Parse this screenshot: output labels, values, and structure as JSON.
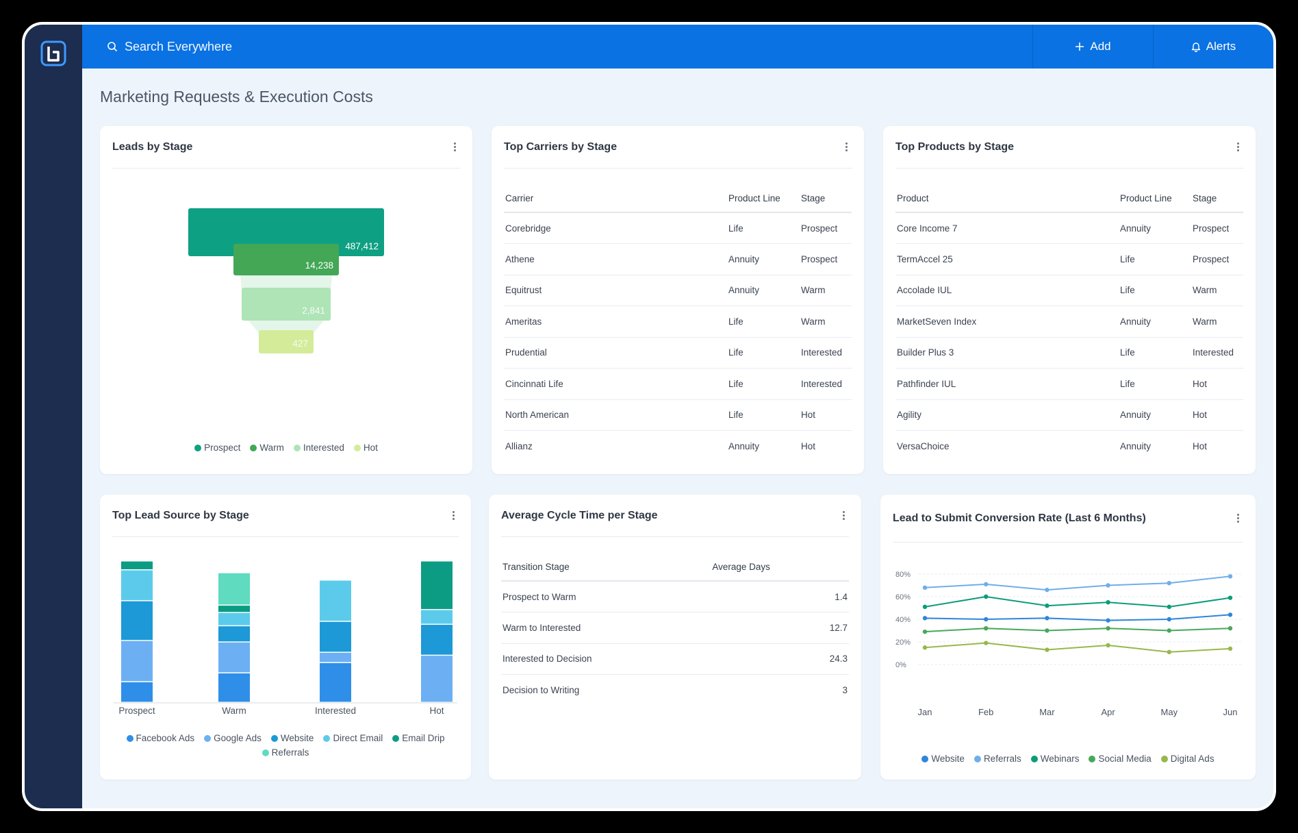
{
  "header": {
    "search_placeholder": "Search Everywhere",
    "add_label": "Add",
    "alerts_label": "Alerts"
  },
  "page": {
    "title": "Marketing Requests & Execution Costs"
  },
  "leads_by_stage": {
    "title": "Leads by Stage",
    "chart_data": {
      "type": "funnel",
      "categories": [
        "Prospect",
        "Warm",
        "Interested",
        "Hot"
      ],
      "values": [
        487412,
        14238,
        2841,
        427
      ],
      "labels": [
        "487,412",
        "14,238",
        "2,841",
        "427"
      ],
      "colors": [
        "#0ea082",
        "#43a756",
        "#aee4b6",
        "#d4ec9a"
      ]
    },
    "legend": [
      {
        "label": "Prospect",
        "color": "#0ea082"
      },
      {
        "label": "Warm",
        "color": "#43a756"
      },
      {
        "label": "Interested",
        "color": "#aee4b6"
      },
      {
        "label": "Hot",
        "color": "#d4ec9a"
      }
    ]
  },
  "top_carriers": {
    "title": "Top Carriers by Stage",
    "columns": [
      "Carrier",
      "Product Line",
      "Stage"
    ],
    "rows": [
      [
        "Corebridge",
        "Life",
        "Prospect"
      ],
      [
        "Athene",
        "Annuity",
        "Prospect"
      ],
      [
        "Equitrust",
        "Annuity",
        "Warm"
      ],
      [
        "Ameritas",
        "Life",
        "Warm"
      ],
      [
        "Prudential",
        "Life",
        "Interested"
      ],
      [
        "Cincinnati Life",
        "Life",
        "Interested"
      ],
      [
        "North American",
        "Life",
        "Hot"
      ],
      [
        "Allianz",
        "Annuity",
        "Hot"
      ]
    ]
  },
  "top_products": {
    "title": "Top Products by Stage",
    "columns": [
      "Product",
      "Product Line",
      "Stage"
    ],
    "rows": [
      [
        "Core Income 7",
        "Annuity",
        "Prospect"
      ],
      [
        "TermAccel 25",
        "Life",
        "Prospect"
      ],
      [
        "Accolade IUL",
        "Life",
        "Warm"
      ],
      [
        "MarketSeven Index",
        "Annuity",
        "Warm"
      ],
      [
        "Builder Plus 3",
        "Life",
        "Interested"
      ],
      [
        "Pathfinder IUL",
        "Life",
        "Hot"
      ],
      [
        "Agility",
        "Annuity",
        "Hot"
      ],
      [
        "VersaChoice",
        "Annuity",
        "Hot"
      ]
    ]
  },
  "top_lead_source": {
    "title": "Top Lead Source by Stage",
    "chart_data": {
      "type": "bar",
      "stacked": true,
      "categories": [
        "Prospect",
        "Warm",
        "Interested",
        "Hot"
      ],
      "series": [
        {
          "name": "Facebook Ads",
          "color": "#2f8fe8",
          "values": [
            14,
            20,
            27,
            0
          ]
        },
        {
          "name": "Google Ads",
          "color": "#6cb0f3",
          "values": [
            28,
            21,
            7,
            32
          ]
        },
        {
          "name": "Website",
          "color": "#1c99d6",
          "values": [
            27,
            11,
            21,
            21
          ]
        },
        {
          "name": "Direct Email",
          "color": "#5ccbeb",
          "values": [
            21,
            9,
            28,
            10
          ]
        },
        {
          "name": "Email Drip",
          "color": "#0c9c84",
          "values": [
            6,
            5,
            0,
            33
          ]
        },
        {
          "name": "Referrals",
          "color": "#5fdbc0",
          "values": [
            0,
            22,
            0,
            0
          ]
        }
      ]
    },
    "legend": [
      {
        "label": "Facebook Ads",
        "color": "#2f8fe8"
      },
      {
        "label": "Google Ads",
        "color": "#6cb0f3"
      },
      {
        "label": "Website",
        "color": "#1c99d6"
      },
      {
        "label": "Direct Email",
        "color": "#5ccbeb"
      },
      {
        "label": "Email Drip",
        "color": "#0c9c84"
      },
      {
        "label": "Referrals",
        "color": "#5fdbc0"
      }
    ]
  },
  "cycle_time": {
    "title": "Average Cycle Time per Stage",
    "columns": [
      "Transition Stage",
      "Average Days"
    ],
    "rows": [
      [
        "Prospect to Warm",
        "1.4"
      ],
      [
        "Warm to Interested",
        "12.7"
      ],
      [
        "Interested to Decision",
        "24.3"
      ],
      [
        "Decision to Writing",
        "3"
      ]
    ]
  },
  "conversion": {
    "title": "Lead to Submit Conversion Rate (Last 6 Months)",
    "chart_data": {
      "type": "line",
      "x": [
        "Jan",
        "Feb",
        "Mar",
        "Apr",
        "May",
        "Jun"
      ],
      "y_ticks": [
        "80%",
        "60%",
        "40%",
        "20%",
        "0%"
      ],
      "ylim": [
        0,
        80
      ],
      "series": [
        {
          "name": "Website",
          "color": "#2d86db",
          "values": [
            41,
            40,
            41,
            39,
            40,
            44
          ]
        },
        {
          "name": "Referrals",
          "color": "#6faee9",
          "values": [
            68,
            71,
            66,
            70,
            72,
            78
          ]
        },
        {
          "name": "Webinars",
          "color": "#0c9c78",
          "values": [
            51,
            60,
            52,
            55,
            51,
            59
          ]
        },
        {
          "name": "Social Media",
          "color": "#47a85a",
          "values": [
            29,
            32,
            30,
            32,
            30,
            32
          ]
        },
        {
          "name": "Digital Ads",
          "color": "#97b84a",
          "values": [
            15,
            19,
            13,
            17,
            11,
            14
          ]
        }
      ]
    },
    "legend": [
      {
        "label": "Website",
        "color": "#2d86db"
      },
      {
        "label": "Referrals",
        "color": "#6faee9"
      },
      {
        "label": "Webinars",
        "color": "#0c9c78"
      },
      {
        "label": "Social Media",
        "color": "#47a85a"
      },
      {
        "label": "Digital Ads",
        "color": "#97b84a"
      }
    ]
  }
}
